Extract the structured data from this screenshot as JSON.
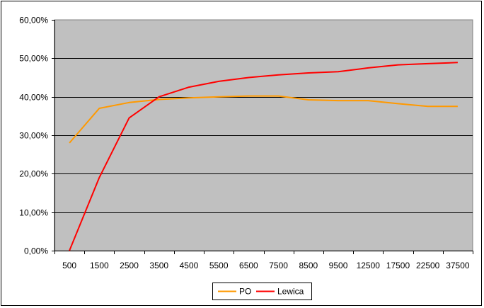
{
  "chart_data": {
    "type": "line",
    "title": "",
    "xlabel": "",
    "ylabel": "",
    "categories": [
      "500",
      "1500",
      "2500",
      "3500",
      "4500",
      "5500",
      "6500",
      "7500",
      "8500",
      "9500",
      "12500",
      "17500",
      "22500",
      "37500"
    ],
    "y_ticks": [
      "0,00%",
      "10,00%",
      "20,00%",
      "30,00%",
      "40,00%",
      "50,00%",
      "60,00%"
    ],
    "ylim": [
      0,
      60
    ],
    "grid": true,
    "legend_position": "bottom",
    "plot_background": "#c0c0c0",
    "series": [
      {
        "name": "PO",
        "color": "#ff9900",
        "values": [
          28.0,
          37.0,
          38.5,
          39.3,
          39.7,
          40.0,
          40.2,
          40.2,
          39.2,
          39.0,
          39.0,
          38.2,
          37.5,
          37.5
        ]
      },
      {
        "name": "Lewica",
        "color": "#ff0000",
        "values": [
          0.0,
          19.0,
          34.5,
          40.0,
          42.5,
          44.0,
          45.0,
          45.7,
          46.2,
          46.5,
          47.5,
          48.3,
          48.6,
          48.9
        ]
      }
    ]
  }
}
